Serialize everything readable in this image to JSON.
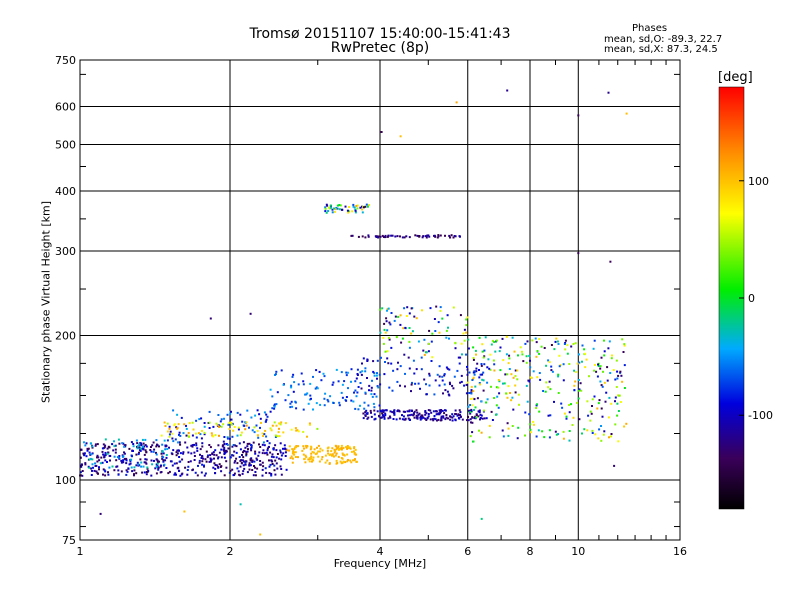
{
  "header": {
    "title_line1": "Tromsø 20151107 15:40:00-15:41:43",
    "title_line2": "RwPretec (8p)",
    "phase_header": "Phases",
    "phase_o": "mean, sd,O: -89.3, 22.7",
    "phase_x": "mean, sd,X:  87.3, 24.5"
  },
  "colorbar": {
    "unit": "[deg]",
    "min": -180,
    "max": 180,
    "ticks": [
      100,
      0,
      -100
    ],
    "tick_labels": [
      "100",
      "0",
      "-100"
    ]
  },
  "chart_data": {
    "type": "scatter",
    "title": "Tromsø 20151107 15:40:00-15:41:43",
    "subtitle": "RwPretec (8p)",
    "xlabel": "Frequency [MHz]",
    "ylabel": "Stationary phase Virtual Height [km]",
    "x_scale": "log",
    "y_scale": "log",
    "xlim": [
      1,
      16
    ],
    "ylim": [
      75,
      750
    ],
    "x_ticks": [
      1,
      2,
      4,
      6,
      8,
      10,
      16
    ],
    "x_tick_labels": [
      "1",
      "2",
      "4",
      "6",
      "8",
      "10",
      "16"
    ],
    "y_ticks": [
      75,
      100,
      200,
      300,
      400,
      500,
      600,
      750
    ],
    "y_tick_labels": [
      "75",
      "100",
      "200",
      "300",
      "400",
      "500",
      "600",
      "750"
    ],
    "grid": true,
    "color_encoding": "phase [deg]",
    "traces": [
      {
        "x_range": [
          1.0,
          2.6
        ],
        "height_range": [
          102,
          120
        ],
        "phase_range": [
          -150,
          -80
        ],
        "count": 520
      },
      {
        "x_range": [
          1.0,
          1.5
        ],
        "height_range": [
          106,
          122
        ],
        "phase_range": [
          -60,
          -20
        ],
        "count": 60
      },
      {
        "x_range": [
          1.5,
          2.5
        ],
        "height_range": [
          118,
          140
        ],
        "phase_range": [
          -110,
          -40
        ],
        "count": 90
      },
      {
        "x_range": [
          1.45,
          3.0
        ],
        "height_range": [
          123,
          132
        ],
        "phase_range": [
          40,
          120
        ],
        "count": 80
      },
      {
        "x_range": [
          2.6,
          3.6
        ],
        "height_range": [
          108,
          118
        ],
        "phase_range": [
          95,
          110
        ],
        "count": 140
      },
      {
        "x_range": [
          3.7,
          6.5
        ],
        "height_range": [
          133,
          140
        ],
        "phase_range": [
          -140,
          -85
        ],
        "count": 200
      },
      {
        "x_range": [
          3.5,
          6.5
        ],
        "height_range": [
          150,
          180
        ],
        "phase_range": [
          -130,
          -60
        ],
        "count": 120
      },
      {
        "x_range": [
          2.4,
          4.0
        ],
        "height_range": [
          140,
          170
        ],
        "phase_range": [
          -90,
          -40
        ],
        "count": 110
      },
      {
        "x_range": [
          3.5,
          5.8
        ],
        "height_range": [
          320,
          324
        ],
        "phase_range": [
          -150,
          -110
        ],
        "count": 60
      },
      {
        "x_range": [
          3.1,
          3.8
        ],
        "height_range": [
          360,
          375
        ],
        "phase_range": [
          -150,
          110
        ],
        "count": 50
      },
      {
        "x_range": [
          6.0,
          12.5
        ],
        "height_range": [
          120,
          200
        ],
        "phase_range": [
          -150,
          110
        ],
        "count": 350
      },
      {
        "x_range": [
          4.0,
          6.0
        ],
        "height_range": [
          180,
          230
        ],
        "phase_range": [
          -150,
          110
        ],
        "count": 90
      }
    ],
    "outliers": [
      {
        "x": 4.03,
        "y": 531,
        "phase": -140
      },
      {
        "x": 4.4,
        "y": 520,
        "phase": 100
      },
      {
        "x": 5.7,
        "y": 612,
        "phase": 110
      },
      {
        "x": 7.2,
        "y": 648,
        "phase": -120
      },
      {
        "x": 10.0,
        "y": 575,
        "phase": -140
      },
      {
        "x": 11.5,
        "y": 641,
        "phase": -120
      },
      {
        "x": 12.5,
        "y": 580,
        "phase": 100
      },
      {
        "x": 1.83,
        "y": 217,
        "phase": -130
      },
      {
        "x": 2.2,
        "y": 222,
        "phase": -130
      },
      {
        "x": 1.1,
        "y": 85,
        "phase": -130
      },
      {
        "x": 1.62,
        "y": 86,
        "phase": 100
      },
      {
        "x": 2.1,
        "y": 89,
        "phase": -30
      },
      {
        "x": 2.3,
        "y": 77,
        "phase": 100
      },
      {
        "x": 6.4,
        "y": 83,
        "phase": -20
      },
      {
        "x": 10.0,
        "y": 297,
        "phase": -140
      },
      {
        "x": 11.6,
        "y": 285,
        "phase": -140
      },
      {
        "x": 11.8,
        "y": 107,
        "phase": -130
      }
    ]
  }
}
